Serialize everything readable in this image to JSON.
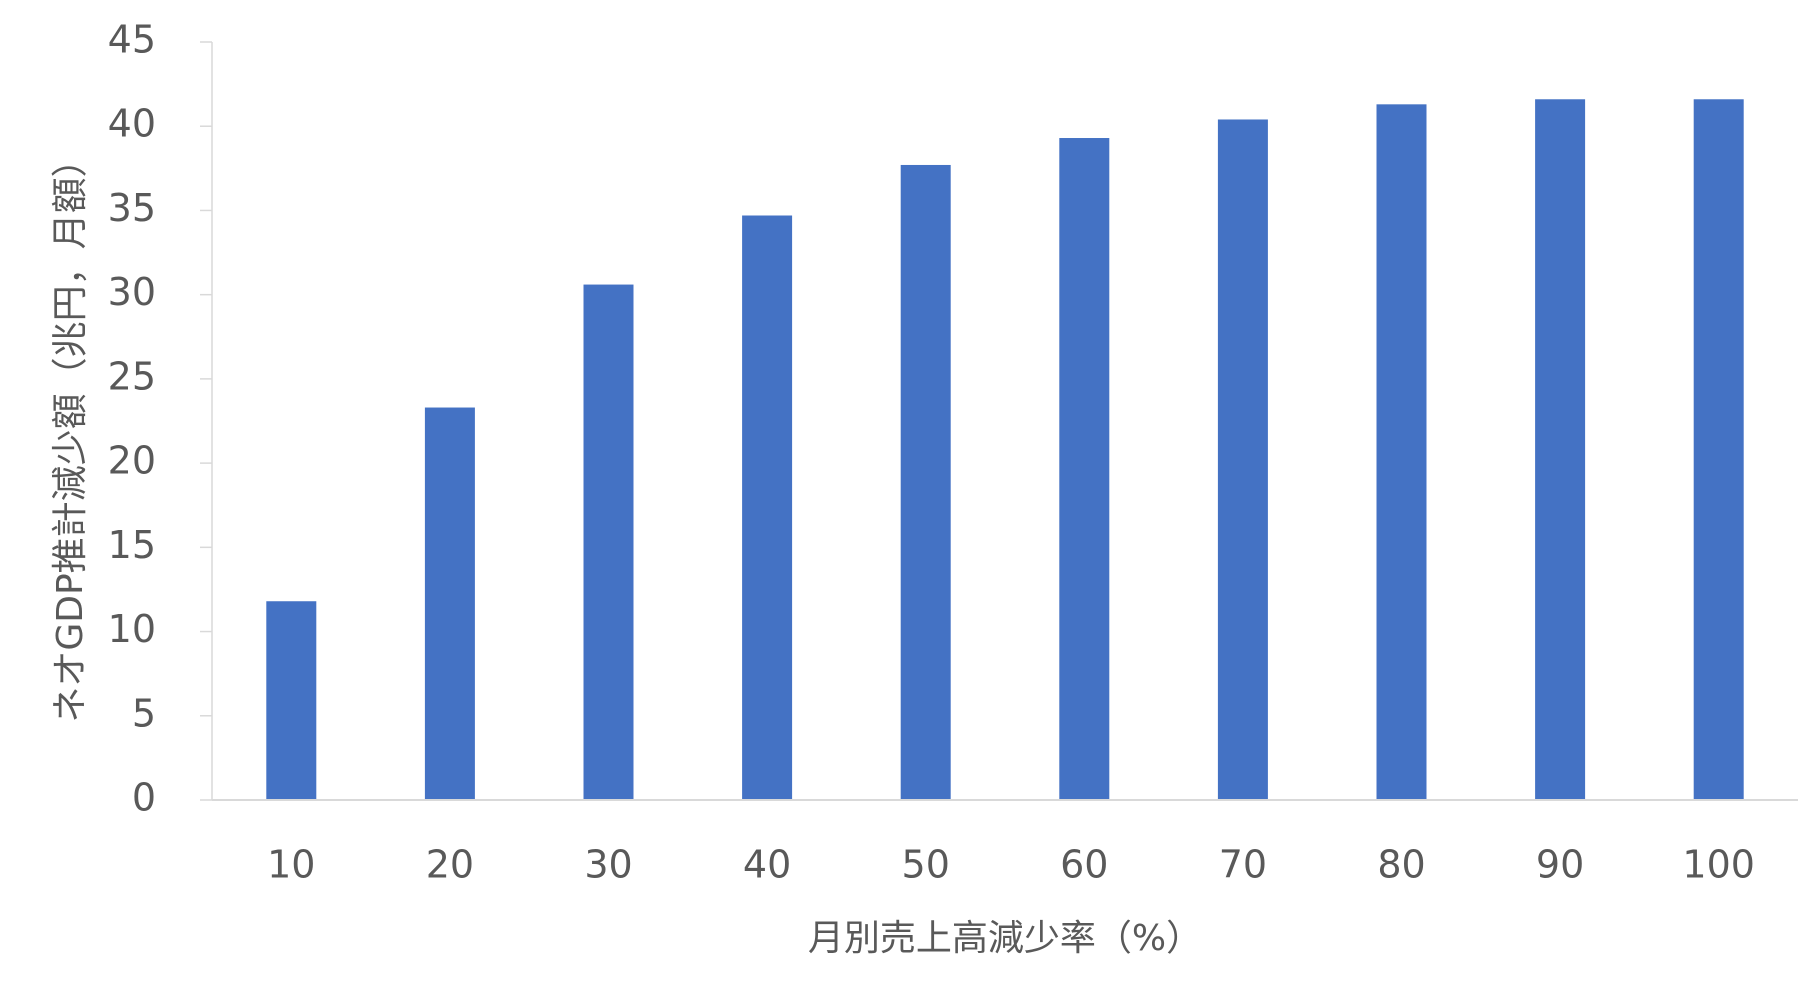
{
  "chart_data": {
    "type": "bar",
    "x_label": "月別売上高減少率（%）",
    "y_label": "ネオGDP推計減少額（兆円，月額）",
    "categories": [
      "10",
      "20",
      "30",
      "40",
      "50",
      "60",
      "70",
      "80",
      "90",
      "100"
    ],
    "values": [
      11.8,
      23.3,
      30.6,
      34.7,
      37.7,
      39.3,
      40.4,
      41.3,
      41.6,
      41.6
    ],
    "color": "#4472c4",
    "ylim": [
      0,
      45
    ],
    "yticks": [
      0,
      5,
      10,
      15,
      20,
      25,
      30,
      35,
      40,
      45
    ],
    "grid": false
  }
}
